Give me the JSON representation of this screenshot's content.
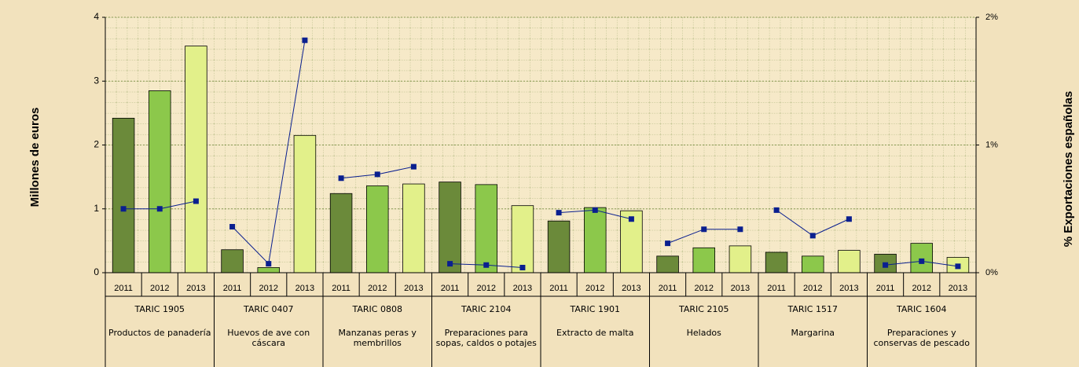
{
  "chart_data": {
    "type": "bar",
    "y_label": "Millones de euros",
    "y2_label": "% Exportaciones españolas",
    "years": [
      "2011",
      "2012",
      "2013"
    ],
    "groups": [
      {
        "code": "TARIC 1905",
        "name": "Productos de panadería"
      },
      {
        "code": "TARIC 0407",
        "name": "Huevos de ave con cáscara"
      },
      {
        "code": "TARIC 0808",
        "name": "Manzanas peras y membrillos"
      },
      {
        "code": "TARIC 2104",
        "name": "Preparaciones para sopas, caldos o potajes"
      },
      {
        "code": "TARIC 1901",
        "name": "Extracto de malta"
      },
      {
        "code": "TARIC 2105",
        "name": "Helados"
      },
      {
        "code": "TARIC 1517",
        "name": "Margarina"
      },
      {
        "code": "TARIC 1604",
        "name": "Preparaciones y conservas de pescado"
      }
    ],
    "bar_colors": [
      "#6b8a3a",
      "#8cc84b",
      "#e2f08a"
    ],
    "values": [
      [
        2.42,
        2.85,
        3.55
      ],
      [
        0.36,
        0.08,
        2.15
      ],
      [
        1.24,
        1.36,
        1.39
      ],
      [
        1.42,
        1.38,
        1.05
      ],
      [
        0.81,
        1.02,
        0.97
      ],
      [
        0.26,
        0.39,
        0.42
      ],
      [
        0.32,
        0.26,
        0.35
      ],
      [
        0.29,
        0.46,
        0.24
      ]
    ],
    "line_color": "#0a1f8f",
    "line_values": [
      [
        0.5,
        0.5,
        0.56
      ],
      [
        0.36,
        0.07,
        1.82
      ],
      [
        0.74,
        0.77,
        0.83
      ],
      [
        0.07,
        0.06,
        0.04
      ],
      [
        0.47,
        0.49,
        0.42
      ],
      [
        0.23,
        0.34,
        0.34
      ],
      [
        0.49,
        0.29,
        0.42
      ],
      [
        0.06,
        0.09,
        0.05
      ]
    ],
    "ylim": [
      0,
      4
    ],
    "yticks": [
      0,
      1,
      2,
      3,
      4
    ],
    "y2lim": [
      0,
      2
    ],
    "y2ticks": [
      {
        "value": 0,
        "label": "0%"
      },
      {
        "value": 1,
        "label": "1%"
      },
      {
        "value": 2,
        "label": "2%"
      }
    ],
    "grid": true
  }
}
